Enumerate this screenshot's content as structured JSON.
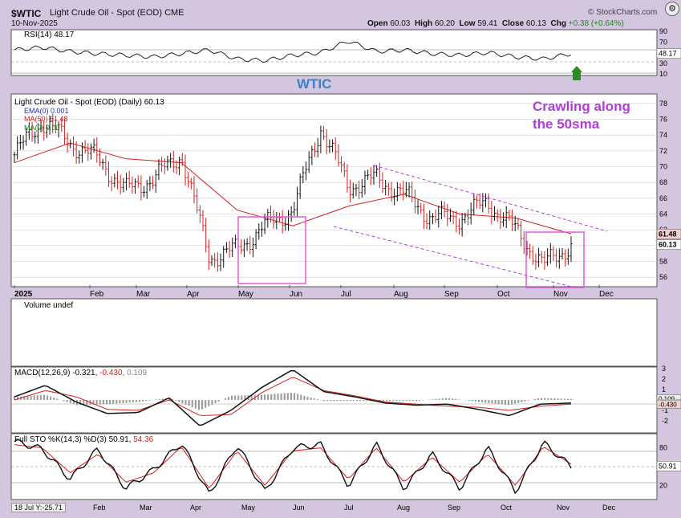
{
  "header": {
    "symbol": "$WTIC",
    "name": "Light Crude Oil - Spot (EOD)",
    "exchange": "CME",
    "date": "10-Nov-2025",
    "open_label": "Open",
    "open": "60.03",
    "high_label": "High",
    "high": "60.20",
    "low_label": "Low",
    "low": "59.41",
    "close_label": "Close",
    "close": "60.13",
    "chg_label": "Chg",
    "chg": "+0.38 (+0.64%)",
    "brand": "© StockCharts.com"
  },
  "annotations": {
    "wtic_label": "WTIC",
    "crawling": "Crawling along",
    "crawling2": "the 50sma"
  },
  "panels": {
    "rsi_title": "RSI(14) 48.17",
    "price_title": "Light Crude Oil - Spot (EOD) (Daily) 60.13",
    "ema_legend": "EMA(0) 0.001",
    "ma50_legend": "MA(50) 61.48",
    "ma0_legend": "MA(0) 0.00",
    "volume_title": "Volume undef",
    "macd_title_a": "MACD(12,26,9) -0.321,",
    "macd_title_b": "-0.430,",
    "macd_title_c": "0.109",
    "sto_title_a": "Full STO %K(14,3) %D(3) 50.91,",
    "sto_title_b": "54.36",
    "cursor_readout": "18 Jul Y:-25.71"
  },
  "colors": {
    "ma50": "#d42020",
    "ema": "#1b2bc8",
    "ma0": "#1a8c1a",
    "annotation_purple": "#b23cd8",
    "wtic_blue": "#3a82c8",
    "box_magenta": "#e25ae0",
    "channel": "#b23cd8"
  },
  "chart_data": [
    {
      "type": "candlestick",
      "title": "Light Crude Oil - Spot (EOD) (Daily)",
      "ylabel": "",
      "ylim": [
        55,
        79
      ],
      "yticks": [
        "56",
        "58",
        "60",
        "62",
        "64",
        "66",
        "68",
        "70",
        "72",
        "74",
        "76",
        "78"
      ],
      "x_tick_labels": [
        "2025",
        "Feb",
        "Mar",
        "Apr",
        "May",
        "Jun",
        "Jul",
        "Aug",
        "Sep",
        "Oct",
        "Nov",
        "Dec"
      ],
      "last_price_tag": "60.13",
      "ma50_tag": "61.48",
      "series": [
        {
          "name": "Light Crude Oil - Spot",
          "dates": [
            "Jan",
            "Jan",
            "Feb",
            "Feb",
            "Mar",
            "Mar",
            "Apr",
            "Apr",
            "May",
            "May",
            "Jun",
            "Jun",
            "Jul",
            "Jul",
            "Aug",
            "Aug",
            "Sep",
            "Sep",
            "Oct",
            "Oct",
            "Nov"
          ],
          "values": [
            71.5,
            75.8,
            73.0,
            71.0,
            67.0,
            68.5,
            71.5,
            58.5,
            59.5,
            62.5,
            64.5,
            75.0,
            67.5,
            68.5,
            66.5,
            63.5,
            63.5,
            65.5,
            62.0,
            57.5,
            60.1
          ]
        },
        {
          "name": "MA(50)",
          "dates": [
            "Jan",
            "Feb",
            "Mar",
            "Apr",
            "May",
            "Jun",
            "Jul",
            "Aug",
            "Sep",
            "Oct",
            "Nov"
          ],
          "values": [
            70.5,
            73.0,
            71.0,
            70.5,
            64.5,
            62.5,
            65.0,
            66.5,
            64.0,
            63.5,
            61.5
          ]
        }
      ]
    },
    {
      "type": "line",
      "title": "RSI(14)",
      "value": "48.17",
      "ylim": [
        10,
        90
      ],
      "yticks": [
        "90",
        "70",
        "50",
        "30",
        "10"
      ],
      "series": [
        {
          "name": "RSI(14)",
          "values": [
            55,
            60,
            52,
            48,
            45,
            42,
            48,
            55,
            38,
            35,
            45,
            50,
            72,
            52,
            55,
            48,
            45,
            50,
            42,
            38,
            48
          ]
        }
      ]
    },
    {
      "type": "line",
      "title": "MACD(12,26,9)",
      "values_shown": [
        "-0.321",
        "-0.430",
        "0.109"
      ],
      "ylim": [
        -3,
        3
      ],
      "yticks": [
        "3",
        "2",
        "1",
        "0",
        "-1",
        "-2"
      ],
      "tags": [
        "0.109",
        "-0.321",
        "-0.430"
      ],
      "series": [
        {
          "name": "MACD",
          "values": [
            0.3,
            1.4,
            -0.2,
            -1.3,
            -1.2,
            0.2,
            -2.5,
            -1.0,
            1.2,
            2.9,
            0.8,
            0.3,
            -0.3,
            -0.5,
            -0.4,
            -0.9,
            -1.5,
            -0.4,
            -0.3
          ]
        },
        {
          "name": "Signal",
          "values": [
            0.0,
            0.9,
            0.3,
            -0.9,
            -1.0,
            0.0,
            -1.5,
            -1.4,
            0.7,
            2.2,
            0.9,
            0.4,
            -0.2,
            -0.4,
            -0.6,
            -0.7,
            -1.0,
            -0.6,
            -0.4
          ]
        }
      ]
    },
    {
      "type": "line",
      "title": "Full STO %K(14,3) %D(3)",
      "values_shown": [
        "50.91",
        "54.36"
      ],
      "ylim": [
        0,
        100
      ],
      "yticks": [
        "80",
        "50",
        "20"
      ],
      "tags": [
        "50.91"
      ],
      "series": [
        {
          "name": "%K",
          "values": [
            90,
            78,
            30,
            78,
            15,
            45,
            88,
            5,
            85,
            10,
            80,
            85,
            20,
            85,
            15,
            70,
            15,
            80,
            10,
            88,
            50
          ]
        },
        {
          "name": "%D",
          "values": [
            85,
            80,
            40,
            70,
            25,
            40,
            82,
            15,
            75,
            20,
            75,
            80,
            30,
            80,
            25,
            65,
            25,
            70,
            20,
            82,
            54
          ]
        }
      ]
    }
  ]
}
